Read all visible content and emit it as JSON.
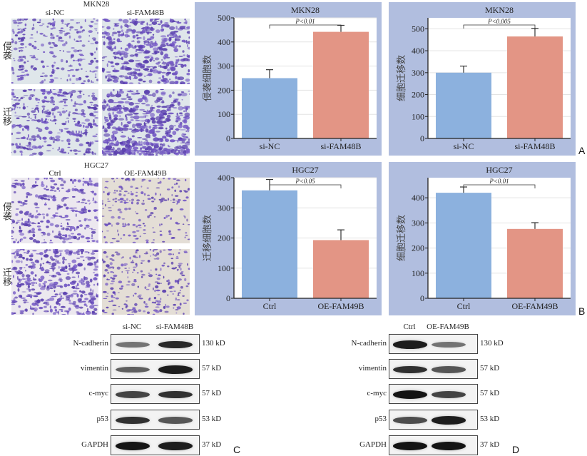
{
  "figure_letters": [
    "A",
    "B",
    "C",
    "D"
  ],
  "micrographs": [
    {
      "cell_line": "MKN28",
      "columns": [
        "si-NC",
        "si-FAM48B"
      ],
      "rows": [
        "侵袭",
        "迁移"
      ],
      "density": [
        [
          0.35,
          0.7
        ],
        [
          0.5,
          0.8
        ]
      ],
      "tint": [
        "#dfe6ea",
        "#dfe6ea"
      ]
    },
    {
      "cell_line": "HGC27",
      "columns": [
        "Ctrl",
        "OE-FAM49B"
      ],
      "rows": [
        "侵袭",
        "迁移"
      ],
      "density": [
        [
          0.45,
          0.2
        ],
        [
          0.6,
          0.3
        ]
      ],
      "tint": [
        "#ece8ef",
        "#e4ded6"
      ]
    }
  ],
  "colors": {
    "panel_bg": "#b1bedf",
    "bar_control": "#8cb1de",
    "bar_treated": "#e39585",
    "grid": "#e3e3e3"
  },
  "chart_data": [
    {
      "type": "bar",
      "title": "MKN28",
      "ylabel": "侵袭细胞数",
      "categories": [
        "si-NC",
        "si-FAM48B"
      ],
      "values": [
        250,
        442
      ],
      "errors": [
        35,
        27
      ],
      "ylim": [
        0,
        500
      ],
      "yticks": [
        0,
        100,
        200,
        300,
        400,
        500
      ],
      "significance": "P<0.01",
      "grid": true
    },
    {
      "type": "bar",
      "title": "MKN28",
      "ylabel": "细胞迁移数",
      "categories": [
        "si-NC",
        "si-FAM48B"
      ],
      "values": [
        300,
        465
      ],
      "errors": [
        30,
        37
      ],
      "ylim": [
        0,
        550
      ],
      "yticks": [
        0,
        100,
        200,
        300,
        400,
        500
      ],
      "significance": "P<0.005",
      "grid": true
    },
    {
      "type": "bar",
      "title": "HGC27",
      "ylabel": "迁移细胞数",
      "categories": [
        "Ctrl",
        "OE-FAM49B"
      ],
      "values": [
        358,
        193
      ],
      "errors": [
        36,
        34
      ],
      "ylim": [
        0,
        400
      ],
      "yticks": [
        0,
        100,
        200,
        300,
        400
      ],
      "significance": "P<0.05",
      "grid": true
    },
    {
      "type": "bar",
      "title": "HGC27",
      "ylabel": "细胞迁移数",
      "categories": [
        "Ctrl",
        "OE-FAM49B"
      ],
      "values": [
        420,
        276
      ],
      "errors": [
        23,
        25
      ],
      "ylim": [
        0,
        480
      ],
      "yticks": [
        0,
        100,
        200,
        300,
        400
      ],
      "significance": "P<0.01",
      "grid": true
    }
  ],
  "western_blots": [
    {
      "lanes": [
        "si-NC",
        "si-FAM48B"
      ],
      "proteins": [
        {
          "name": "N-cadherin",
          "size": "130 kD",
          "intensity": [
            0.45,
            0.85
          ]
        },
        {
          "name": "vimentin",
          "size": "57 kD",
          "intensity": [
            0.55,
            0.9
          ]
        },
        {
          "name": "c-myc",
          "size": "57 kD",
          "intensity": [
            0.7,
            0.8
          ]
        },
        {
          "name": "p53",
          "size": "53 kD",
          "intensity": [
            0.8,
            0.6
          ]
        },
        {
          "name": "GAPDH",
          "size": "37 kD",
          "intensity": [
            0.95,
            0.9
          ]
        }
      ]
    },
    {
      "lanes": [
        "Ctrl",
        "OE-FAM49B"
      ],
      "proteins": [
        {
          "name": "N-cadherin",
          "size": "130 kD",
          "intensity": [
            0.9,
            0.45
          ]
        },
        {
          "name": "vimentin",
          "size": "57 kD",
          "intensity": [
            0.8,
            0.6
          ]
        },
        {
          "name": "c-myc",
          "size": "57 kD",
          "intensity": [
            0.95,
            0.7
          ]
        },
        {
          "name": "p53",
          "size": "53 kD",
          "intensity": [
            0.65,
            0.9
          ]
        },
        {
          "name": "GAPDH",
          "size": "37 kD",
          "intensity": [
            0.95,
            0.95
          ]
        }
      ]
    }
  ]
}
